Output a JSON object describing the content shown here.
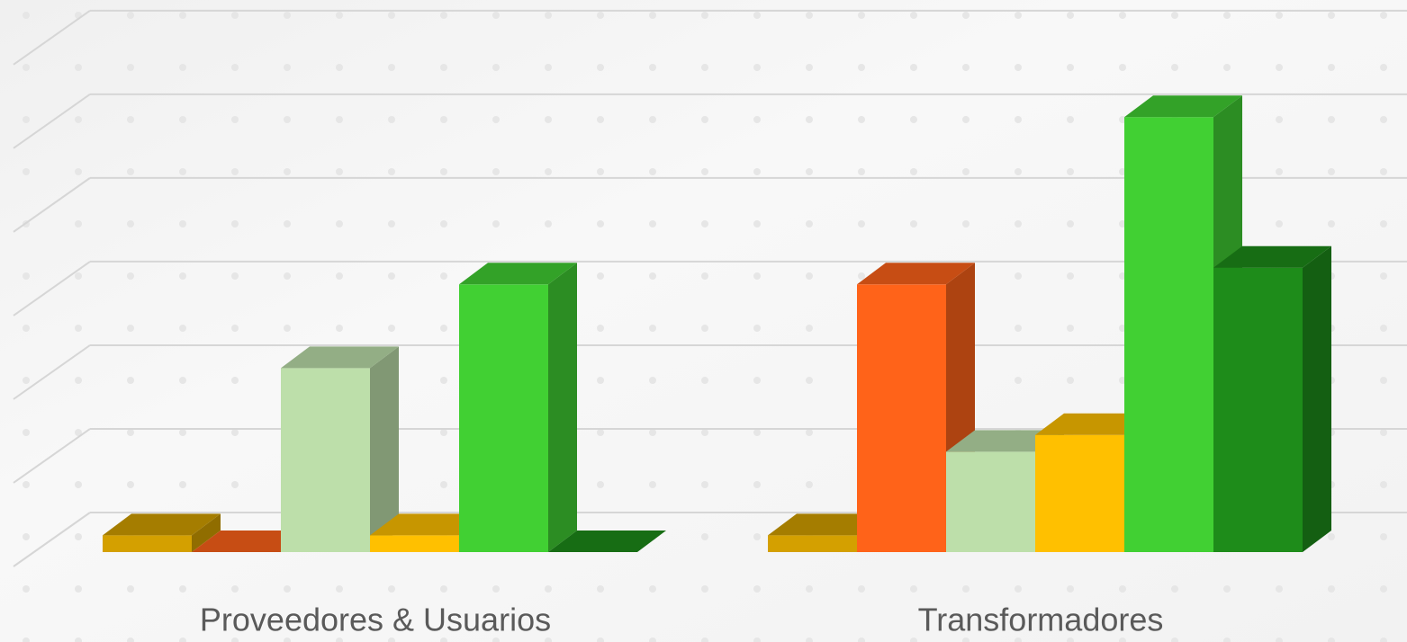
{
  "chart_data": {
    "type": "bar3d",
    "categories": [
      "Proveedores & Usuarios",
      "Transformadores"
    ],
    "series": [
      {
        "color": "#d4a000",
        "values": [
          0.2,
          0.2
        ]
      },
      {
        "color": "#ff6319",
        "values": [
          0,
          3.2
        ]
      },
      {
        "color": "#bddfaa",
        "values": [
          2.2,
          1.2
        ]
      },
      {
        "color": "#ffc000",
        "values": [
          0.2,
          1.4
        ]
      },
      {
        "color": "#41d033",
        "values": [
          3.2,
          5.2
        ]
      },
      {
        "color": "#1e8c1a",
        "values": [
          0,
          3.4
        ]
      }
    ],
    "ylim": [
      0,
      6.6
    ],
    "yticks": [
      0,
      1,
      2,
      3,
      4,
      5,
      6
    ],
    "grid": true
  }
}
